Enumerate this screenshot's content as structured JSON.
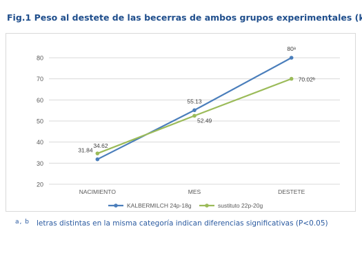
{
  "figure": {
    "title": "Fig.1 Peso al destete de las becerras de ambos grupos experimentales (kg).",
    "footnote_marks": "a, b",
    "footnote_text": "letras distintas en la misma categoría indican diferencias significativas (P<0.05)"
  },
  "chart_data": {
    "type": "line",
    "categories": [
      "NACIMIENTO",
      "MES",
      "DESTETE"
    ],
    "ylim": [
      20,
      80
    ],
    "yticks": [
      20,
      30,
      40,
      50,
      60,
      70,
      80
    ],
    "grid": true,
    "legend_position": "bottom",
    "series": [
      {
        "name": "KALBERMILCH 24p-18g",
        "values": [
          31.84,
          55.13,
          80
        ],
        "labels": [
          "31.84",
          "55.13",
          "80ᵃ"
        ],
        "color": "#4a7ebb"
      },
      {
        "name": "sustituto 22p-20g",
        "values": [
          34.62,
          52.49,
          70.02
        ],
        "labels": [
          "34.62",
          "52.49",
          "70.02ᵇ"
        ],
        "color": "#9bbb59"
      }
    ]
  }
}
